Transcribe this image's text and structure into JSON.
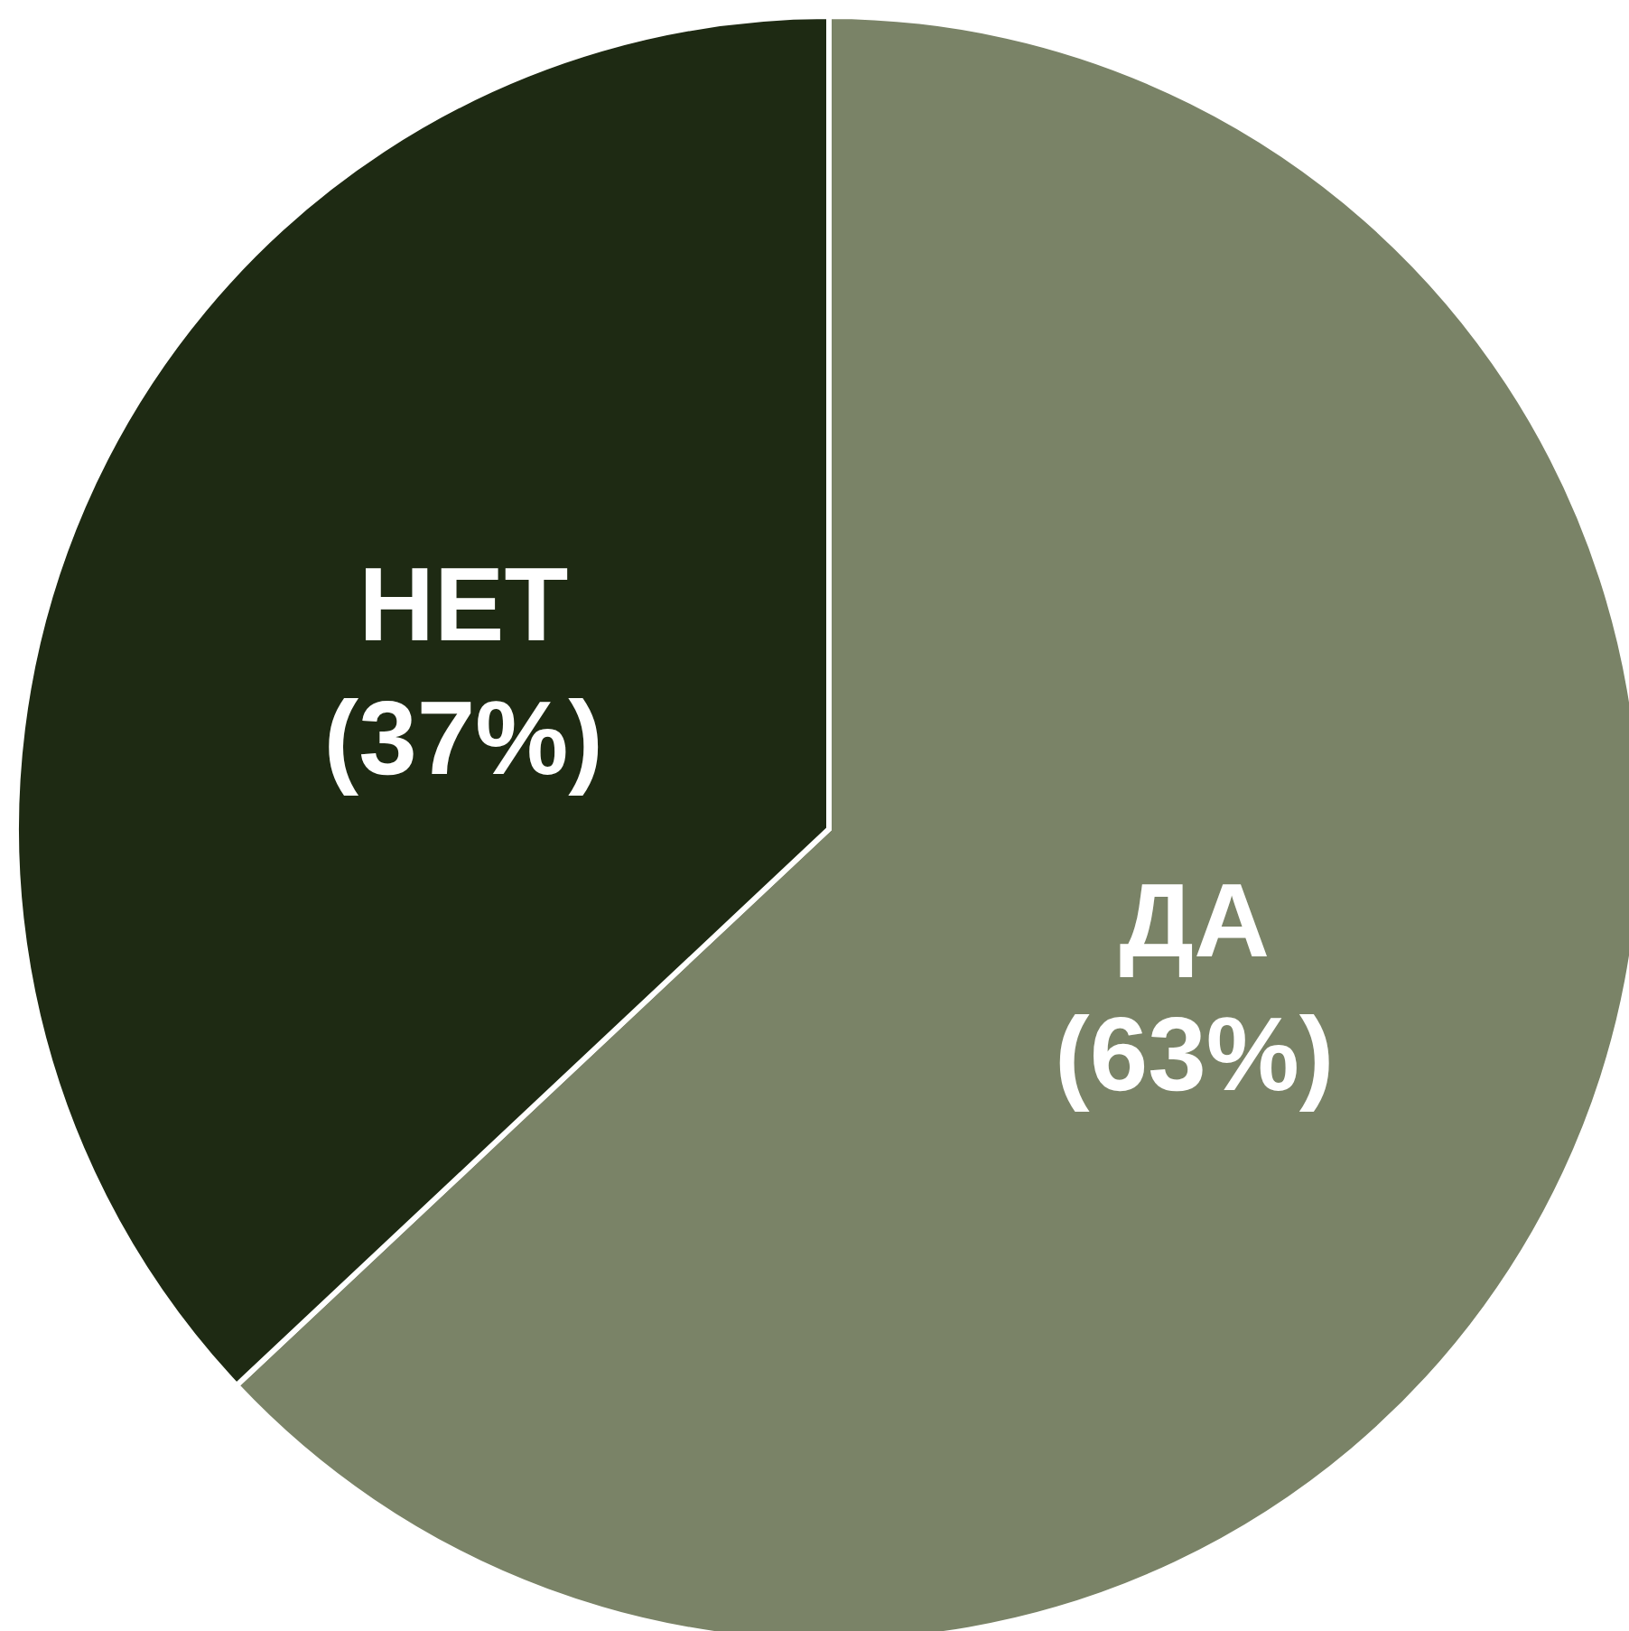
{
  "chart_data": {
    "type": "pie",
    "categories": [
      "ДА",
      "НЕТ"
    ],
    "values": [
      63,
      37
    ],
    "colors": [
      "#7a8367",
      "#1e2a13"
    ],
    "value_labels": [
      "(63%)",
      "(37%)"
    ]
  }
}
